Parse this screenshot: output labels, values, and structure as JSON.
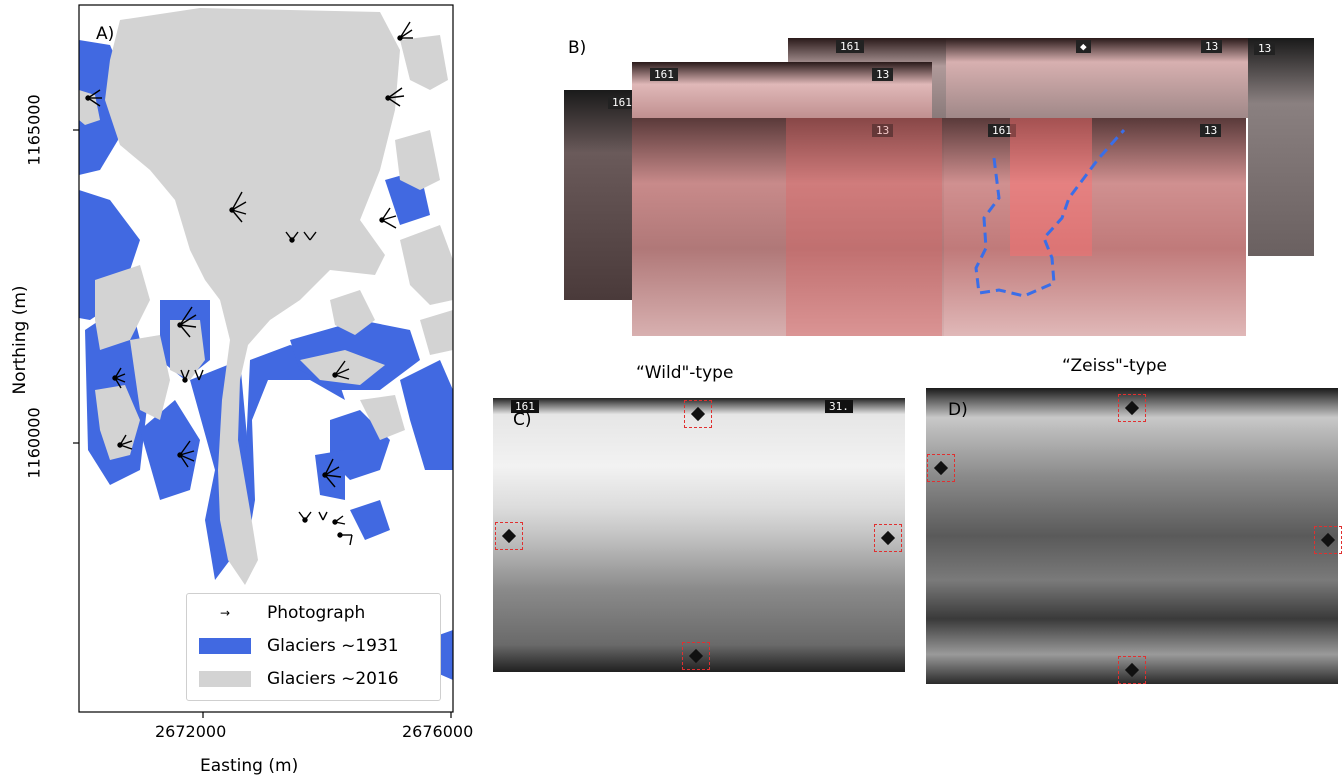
{
  "panel_a": {
    "label": "A)",
    "xlabel": "Easting (m)",
    "ylabel": "Northing (m)",
    "x_ticks": [
      "2672000",
      "2676000"
    ],
    "y_ticks": [
      "1165000",
      "1160000"
    ],
    "legend": [
      {
        "label": "Photograph",
        "symbol": "arrow"
      },
      {
        "label": "Glaciers ~1931",
        "color": "#4169e1"
      },
      {
        "label": "Glaciers ~2016",
        "color": "#d3d3d3"
      }
    ]
  },
  "panel_b": {
    "label": "B)",
    "frame_numbers": [
      "161",
      "13"
    ]
  },
  "panel_c": {
    "label": "C)",
    "title": "“Wild\"-type",
    "frame_numbers": [
      "161",
      "31."
    ]
  },
  "panel_d": {
    "label": "D)",
    "title": "“Zeiss\"-type"
  },
  "colors": {
    "glacier_1931": "#4169e1",
    "glacier_2016": "#d3d3d3",
    "fiducial_box": "#e03030",
    "overlap_tint": "#e06060",
    "outline_dashed": "#3a6ee8"
  }
}
